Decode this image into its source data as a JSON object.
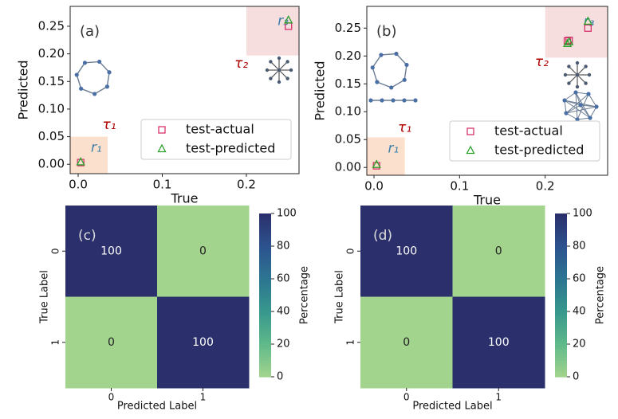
{
  "chart_data": [
    {
      "type": "scatter",
      "label": "(a)",
      "xlabel": "True",
      "ylabel": "Predicted",
      "xlim": [
        -0.0095,
        0.2626
      ],
      "ylim": [
        -0.017,
        0.286
      ],
      "xticks": [
        {
          "value": 0,
          "label": "0.0"
        },
        0.1,
        0.2
      ],
      "yticks": [
        {
          "value": 0,
          "label": "0.00"
        },
        0.05,
        {
          "value": 0.1,
          "label": "0.10"
        },
        0.15,
        {
          "value": 0.2,
          "label": "0.20"
        },
        0.25
      ],
      "series": [
        {
          "name": "test-actual",
          "color": "#d6336c",
          "marker": "square",
          "x": [
            0.003,
            0.25
          ],
          "values": [
            0.003,
            0.25
          ]
        },
        {
          "name": "test-predicted",
          "color": "#2ca02c",
          "marker": "triangle",
          "x": [
            0.003,
            0.25
          ],
          "values": [
            0.004,
            0.261
          ]
        }
      ],
      "regions": [
        {
          "label": "r₁",
          "color": "#fbe1cd",
          "x": [
            -0.0095,
            0.035
          ],
          "y": [
            -0.017,
            0.05
          ]
        },
        {
          "label": "r₃",
          "color": "#f7dede",
          "x": [
            0.2,
            0.2626
          ],
          "y": [
            0.197,
            0.286
          ]
        }
      ],
      "annotations": [
        {
          "text": "τ₁",
          "x": 0.037,
          "y": 0.071
        },
        {
          "text": "τ₂",
          "x": 0.194,
          "y": 0.182
        }
      ],
      "legend": "lower right"
    },
    {
      "type": "scatter",
      "label": "(b)",
      "xlabel": "True",
      "ylabel": "Predicted",
      "xlim": [
        -0.0084,
        0.273
      ],
      "ylim": [
        -0.014,
        0.289
      ],
      "xticks": [
        {
          "value": 0,
          "label": "0.0"
        },
        0.1,
        0.2
      ],
      "yticks": [
        {
          "value": 0,
          "label": "0.00"
        },
        0.05,
        {
          "value": 0.1,
          "label": "0.10"
        },
        0.15,
        {
          "value": 0.2,
          "label": "0.20"
        },
        0.25
      ],
      "series": [
        {
          "name": "test-actual",
          "color": "#d6336c",
          "marker": "square",
          "x": [
            0.003,
            0.226,
            0.228,
            0.25
          ],
          "values": [
            0.003,
            0.227,
            0.228,
            0.25
          ]
        },
        {
          "name": "test-predicted",
          "color": "#2ca02c",
          "marker": "triangle",
          "x": [
            0.003,
            0.226,
            0.228,
            0.25
          ],
          "values": [
            0.005,
            0.222,
            0.225,
            0.262
          ]
        }
      ],
      "regions": [
        {
          "label": "r₁",
          "color": "#fbe1cd",
          "x": [
            -0.0084,
            0.036
          ],
          "y": [
            -0.014,
            0.054
          ]
        },
        {
          "label": "r₃",
          "color": "#f7dede",
          "x": [
            0.2,
            0.273
          ],
          "y": [
            0.197,
            0.289
          ]
        }
      ],
      "annotations": [
        {
          "text": "τ₁",
          "x": 0.036,
          "y": 0.071
        },
        {
          "text": "τ₂",
          "x": 0.196,
          "y": 0.189
        }
      ],
      "legend": "lower right"
    },
    {
      "type": "heatmap",
      "label": "(c)",
      "xlabel": "Predicted Label",
      "ylabel": "True Label",
      "x_categories": [
        "0",
        "1"
      ],
      "y_categories": [
        "0",
        "1"
      ],
      "values": [
        [
          100,
          0
        ],
        [
          0,
          100
        ]
      ],
      "colorbar_label": "Percentage",
      "clim": [
        0,
        100
      ],
      "cticks": [
        0,
        20,
        40,
        60,
        80,
        100
      ],
      "cmap": [
        "#a2d48d",
        "#5fb98a",
        "#37978d",
        "#2d7592",
        "#2c528e",
        "#2b2f6c"
      ]
    },
    {
      "type": "heatmap",
      "label": "(d)",
      "xlabel": "Predicted Label",
      "ylabel": "True Label",
      "x_categories": [
        "0",
        "1"
      ],
      "y_categories": [
        "0",
        "1"
      ],
      "values": [
        [
          100,
          0
        ],
        [
          0,
          100
        ]
      ],
      "colorbar_label": "Percentage",
      "clim": [
        0,
        100
      ],
      "cticks": [
        0,
        20,
        40,
        60,
        80,
        100
      ],
      "cmap": [
        "#a2d48d",
        "#5fb98a",
        "#37978d",
        "#2d7592",
        "#2c528e",
        "#2b2f6c"
      ]
    }
  ]
}
